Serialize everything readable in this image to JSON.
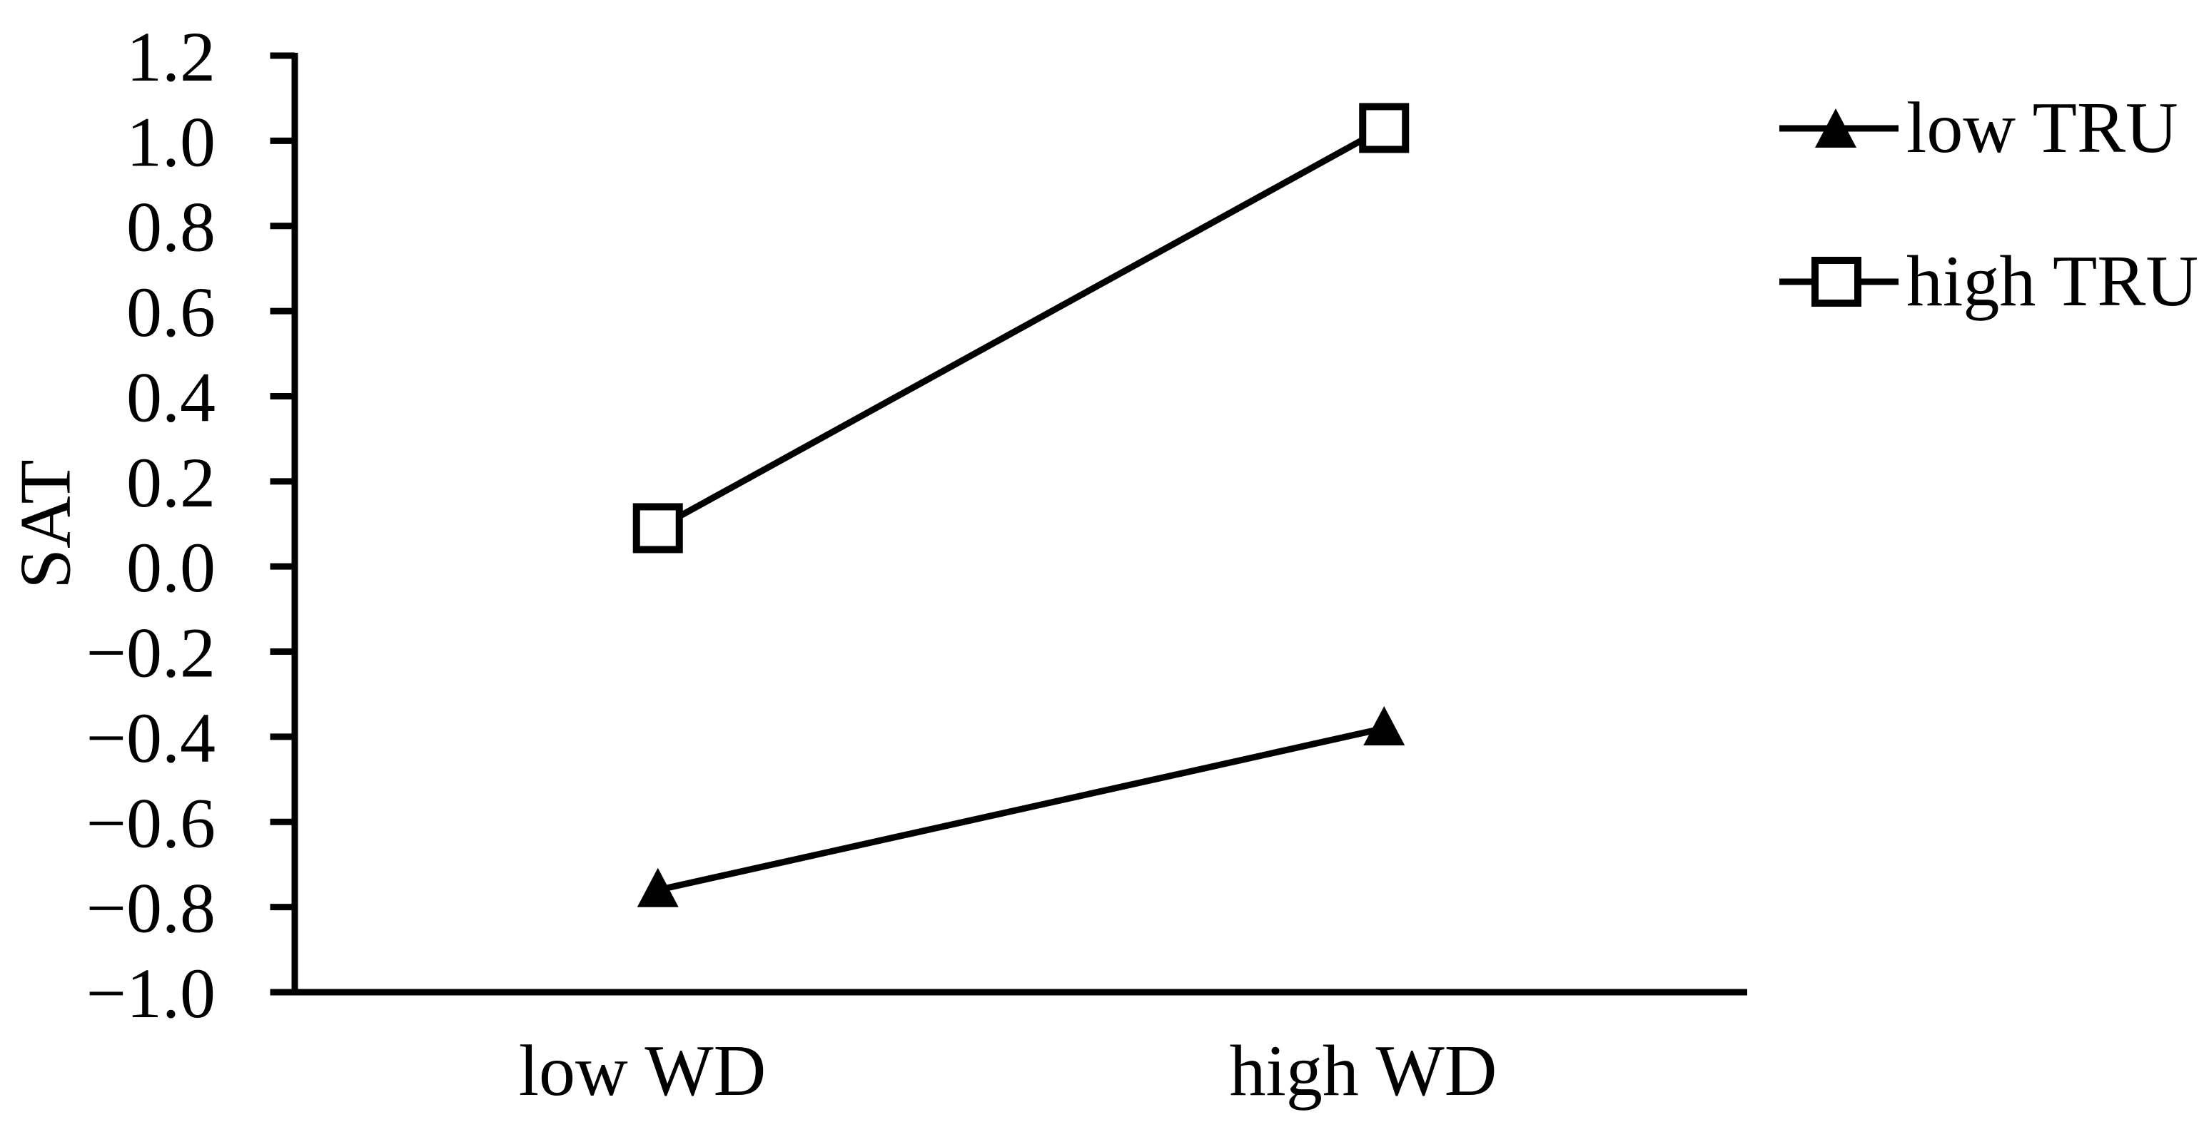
{
  "chart_data": {
    "type": "line",
    "title": "",
    "categories": [
      "low WD",
      "high WD"
    ],
    "series": [
      {
        "name": "low TRU",
        "marker": "filled-triangle",
        "values": [
          -0.76,
          -0.38
        ]
      },
      {
        "name": "high TRU",
        "marker": "open-square",
        "values": [
          0.09,
          1.03
        ]
      }
    ],
    "xlabel": "",
    "ylabel": "SAT",
    "ylim": [
      -1.0,
      1.2
    ],
    "y_axis": {
      "tick_step": 0.2,
      "tick_values": [
        1.2,
        1.0,
        0.8,
        0.6,
        0.4,
        0.2,
        0.0,
        -0.2,
        -0.4,
        -0.6,
        -0.8,
        -1.0
      ],
      "tick_labels": [
        "1.2",
        "1.0",
        "0.8",
        "0.6",
        "0.4",
        "0.2",
        "0.0",
        "−0.2",
        "−0.4",
        "−0.6",
        "−0.8",
        "−1.0"
      ]
    },
    "grid": false,
    "legend": {
      "position": "right",
      "entries": [
        {
          "label": "low TRU",
          "marker": "filled-triangle"
        },
        {
          "label": "high TRU",
          "marker": "open-square"
        }
      ]
    },
    "colors": {
      "series": "#000000",
      "background": "#ffffff"
    }
  }
}
